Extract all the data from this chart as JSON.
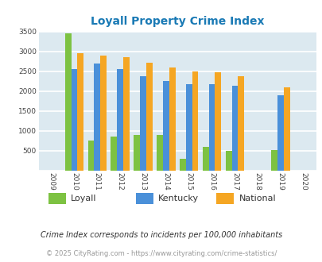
{
  "title": "Loyall Property Crime Index",
  "years": [
    "2009",
    "2010",
    "2011",
    "2012",
    "2013",
    "2014",
    "2015",
    "2016",
    "2017",
    "2018",
    "2019",
    "2020"
  ],
  "loyall": [
    0,
    3450,
    750,
    850,
    900,
    900,
    300,
    600,
    490,
    0,
    510,
    0
  ],
  "kentucky": [
    0,
    2550,
    2700,
    2550,
    2370,
    2250,
    2170,
    2170,
    2130,
    0,
    1900,
    0
  ],
  "national": [
    0,
    2950,
    2900,
    2860,
    2720,
    2600,
    2500,
    2480,
    2370,
    0,
    2100,
    0
  ],
  "colors": {
    "loyall": "#7dc242",
    "kentucky": "#4a90d9",
    "national": "#f5a623"
  },
  "ylim": [
    0,
    3500
  ],
  "yticks": [
    0,
    500,
    1000,
    1500,
    2000,
    2500,
    3000,
    3500
  ],
  "background_color": "#dce9f0",
  "grid_color": "#ffffff",
  "title_color": "#1a7ab5",
  "footer_text": "Crime Index corresponds to incidents per 100,000 inhabitants",
  "copyright_text": "© 2025 CityRating.com - https://www.cityrating.com/crime-statistics/",
  "bar_width": 0.27
}
